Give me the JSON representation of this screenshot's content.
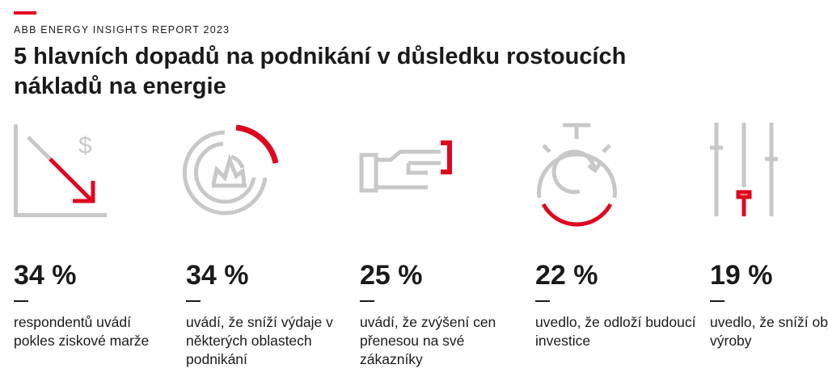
{
  "header": {
    "report": "ABB ENERGY INSIGHTS REPORT 2023",
    "title": "5 hlavních dopadů na podnikání v důsledku rostoucích nákladů na energie"
  },
  "colors": {
    "accent": "#e0061f",
    "icon_gray": "#c8c8c8",
    "text": "#1a1a1a"
  },
  "stats": [
    {
      "icon": "profit-decline-icon",
      "value": "34 %",
      "text": "respondentů uvádí pokles ziskové marže"
    },
    {
      "icon": "spending-gauge-icon",
      "value": "34 %",
      "text": "uvádí, že sníží výdaje v některých oblastech podnikání"
    },
    {
      "icon": "pointing-hand-icon",
      "value": "25 %",
      "text": "uvádí, že zvýšení cen přenesou na své zákazníky"
    },
    {
      "icon": "stopwatch-icon",
      "value": "22 %",
      "text": "uvedlo, že odloží budoucí investice"
    },
    {
      "icon": "sliders-icon",
      "value": "19 %",
      "text": "uvedlo, že sníží objem výroby"
    }
  ]
}
